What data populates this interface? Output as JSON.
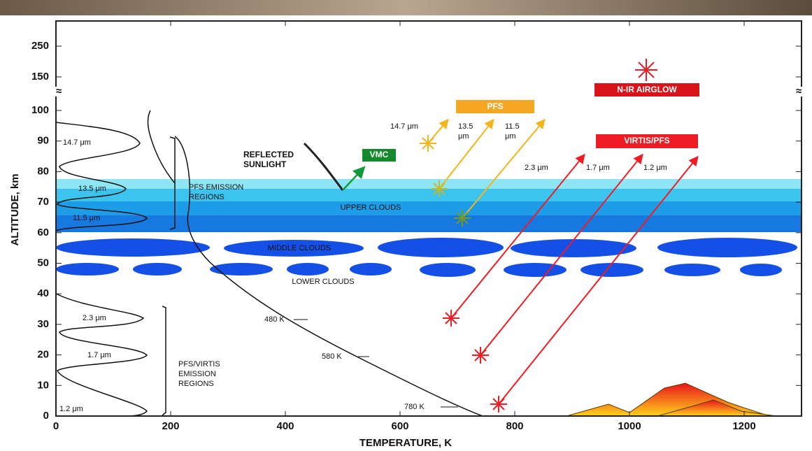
{
  "x_axis": {
    "label": "TEMPERATURE, K",
    "ticks": [
      0,
      200,
      400,
      600,
      800,
      1000,
      1200
    ]
  },
  "y_axis": {
    "label": "ALTITUDE, km",
    "ticks": [
      0,
      10,
      20,
      30,
      40,
      50,
      60,
      70,
      80,
      90,
      100
    ],
    "upper_ticks": [
      150,
      250
    ]
  },
  "emission_labels": [
    "14.7 μm",
    "13.5 μm",
    "11.5 μm",
    "2.3 μm",
    "1.7 μm",
    "1.2 μm"
  ],
  "pfs_emission_regions": [
    "PFS EMISSION",
    "REGIONS"
  ],
  "pfs_virtis_emission_regions": [
    "PFS/VIRTIS",
    "EMISSION",
    "REGIONS"
  ],
  "reflected_sunlight": [
    "REFLECTED",
    "SUNLIGHT"
  ],
  "vmc": "VMC",
  "clouds": {
    "upper": "UPPER CLOUDS",
    "middle": "MIDDLE CLOUDS",
    "lower": "LOWER CLOUDS"
  },
  "pfs": {
    "title": "PFS",
    "wl_1": "14.7 μm",
    "wl_2": [
      "13.5",
      "μm"
    ],
    "wl_3": [
      "11.5",
      "μm"
    ]
  },
  "nir_airglow": "N-IR AIRGLOW",
  "virtis_pfs": {
    "title": "VIRTIS/PFS",
    "wavelengths": [
      "2.3 μm",
      "1.7 μm",
      "1.2 μm"
    ]
  },
  "temperatures": [
    "480 K",
    "580 K",
    "780 K"
  ]
}
